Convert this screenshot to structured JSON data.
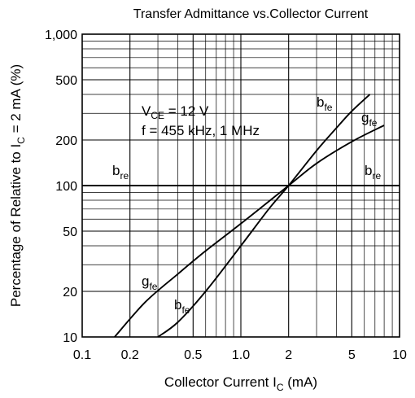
{
  "chart_data": {
    "type": "line",
    "title": "Transfer Admittance vs.Collector Current",
    "xlabel": {
      "main": "Collector Current  I",
      "sub": "C",
      "unit": " (mA)"
    },
    "ylabel": {
      "main": "Percentage of Relative to  I",
      "sub": "C",
      "rest": " = 2 mA (%)"
    },
    "x_scale": "log",
    "y_scale": "log",
    "xlim": [
      0.1,
      10
    ],
    "ylim": [
      10,
      1000
    ],
    "grid": true,
    "x_ticks": [
      {
        "v": 0.1,
        "label": "0.1"
      },
      {
        "v": 0.2,
        "label": "0.2"
      },
      {
        "v": 0.5,
        "label": "0.5"
      },
      {
        "v": 1,
        "label": "1.0"
      },
      {
        "v": 2,
        "label": "2"
      },
      {
        "v": 5,
        "label": "5"
      },
      {
        "v": 10,
        "label": "10"
      }
    ],
    "y_ticks": [
      {
        "v": 10,
        "label": "10"
      },
      {
        "v": 20,
        "label": "20"
      },
      {
        "v": 50,
        "label": "50"
      },
      {
        "v": 100,
        "label": "100"
      },
      {
        "v": 200,
        "label": "200"
      },
      {
        "v": 500,
        "label": "500"
      },
      {
        "v": 1000,
        "label": "1,000"
      }
    ],
    "conditions": [
      {
        "main": "V",
        "sub": "CE",
        "rest": " = 12 V"
      },
      {
        "main": "f = 455 kHz, 1 MHz",
        "sub": "",
        "rest": ""
      }
    ],
    "series": [
      {
        "name": "b_fe",
        "x": [
          0.3,
          0.4,
          0.6,
          1.0,
          1.5,
          2.0,
          3.0,
          4.0,
          5.0,
          6.5
        ],
        "y": [
          10,
          12.5,
          20,
          40,
          70,
          100,
          170,
          240,
          310,
          400
        ],
        "labels": [
          {
            "main": "b",
            "sub": "fe",
            "at": "upper"
          },
          {
            "main": "b",
            "sub": "fe",
            "at": "lower"
          }
        ]
      },
      {
        "name": "g_fe",
        "x": [
          0.16,
          0.25,
          0.4,
          0.6,
          1.0,
          2.0,
          3.0,
          5.0,
          8.0
        ],
        "y": [
          10,
          17,
          26,
          37,
          56,
          100,
          140,
          195,
          250
        ],
        "labels": [
          {
            "main": "g",
            "sub": "fe",
            "at": "upper"
          },
          {
            "main": "g",
            "sub": "fe",
            "at": "lower"
          }
        ]
      },
      {
        "name": "b_re",
        "x": [
          0.1,
          10
        ],
        "y": [
          100,
          100
        ],
        "labels": [
          {
            "main": "b",
            "sub": "re",
            "at": "left"
          },
          {
            "main": "b",
            "sub": "re",
            "at": "right"
          }
        ]
      }
    ]
  }
}
